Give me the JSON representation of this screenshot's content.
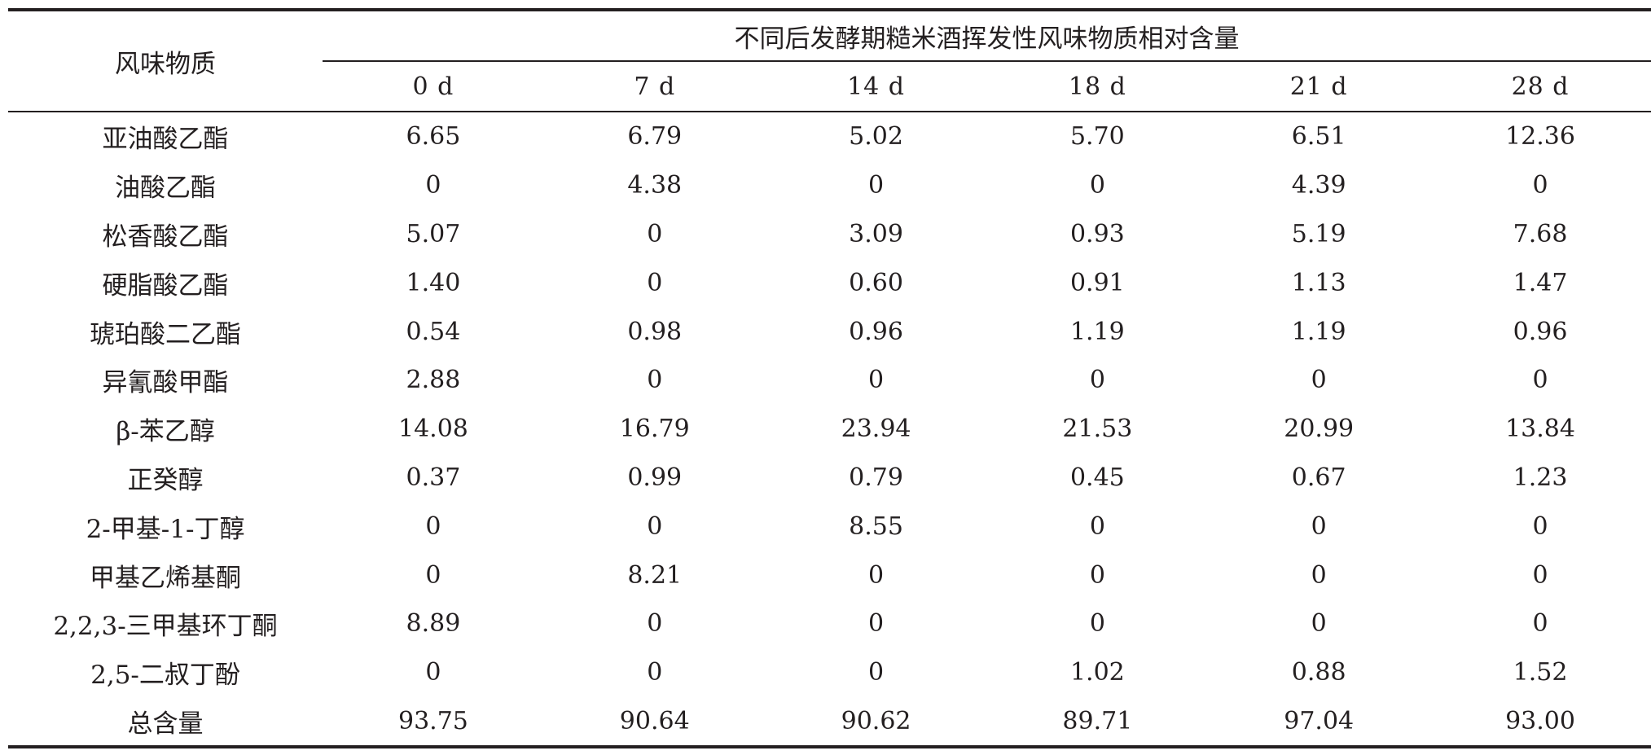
{
  "table": {
    "corner_header": "风味物质",
    "group_header": "不同后发酵期糙米酒挥发性风味物质相对含量",
    "days": [
      "0 d",
      "7 d",
      "14 d",
      "18 d",
      "21 d",
      "28 d"
    ],
    "rows": [
      {
        "name": "亚油酸乙酯",
        "values": [
          "6.65",
          "6.79",
          "5.02",
          "5.70",
          "6.51",
          "12.36"
        ]
      },
      {
        "name": "油酸乙酯",
        "values": [
          "0",
          "4.38",
          "0",
          "0",
          "4.39",
          "0"
        ]
      },
      {
        "name": "松香酸乙酯",
        "values": [
          "5.07",
          "0",
          "3.09",
          "0.93",
          "5.19",
          "7.68"
        ]
      },
      {
        "name": "硬脂酸乙酯",
        "values": [
          "1.40",
          "0",
          "0.60",
          "0.91",
          "1.13",
          "1.47"
        ]
      },
      {
        "name": "琥珀酸二乙酯",
        "values": [
          "0.54",
          "0.98",
          "0.96",
          "1.19",
          "1.19",
          "0.96"
        ]
      },
      {
        "name": "异氰酸甲酯",
        "values": [
          "2.88",
          "0",
          "0",
          "0",
          "0",
          "0"
        ]
      },
      {
        "name": "β-苯乙醇",
        "values": [
          "14.08",
          "16.79",
          "23.94",
          "21.53",
          "20.99",
          "13.84"
        ]
      },
      {
        "name": "正癸醇",
        "values": [
          "0.37",
          "0.99",
          "0.79",
          "0.45",
          "0.67",
          "1.23"
        ]
      },
      {
        "name": "2-甲基-1-丁醇",
        "values": [
          "0",
          "0",
          "8.55",
          "0",
          "0",
          "0"
        ]
      },
      {
        "name": "甲基乙烯基酮",
        "values": [
          "0",
          "8.21",
          "0",
          "0",
          "0",
          "0"
        ]
      },
      {
        "name": "2,2,3-三甲基环丁酮",
        "values": [
          "8.89",
          "0",
          "0",
          "0",
          "0",
          "0"
        ]
      },
      {
        "name": "2,5-二叔丁酚",
        "values": [
          "0",
          "0",
          "0",
          "1.02",
          "0.88",
          "1.52"
        ]
      },
      {
        "name": "总含量",
        "values": [
          "93.75",
          "90.64",
          "90.62",
          "89.71",
          "97.04",
          "93.00"
        ]
      }
    ]
  }
}
